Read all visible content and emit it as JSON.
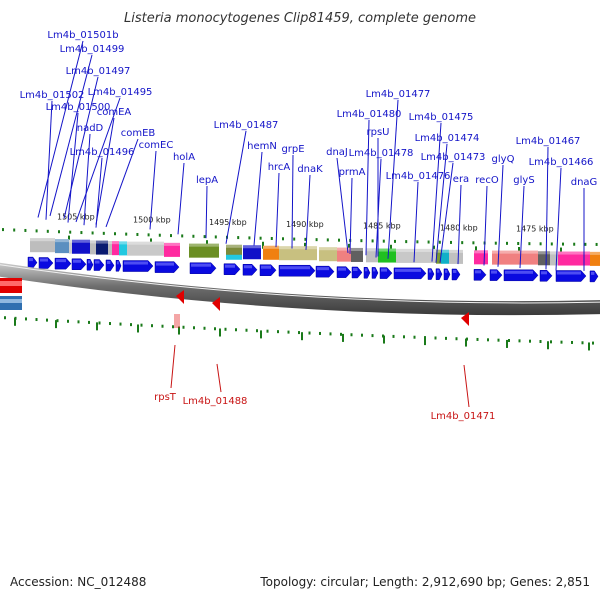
{
  "title": "Listeria monocytogenes Clip81459, complete genome",
  "accession": "Accession: NC_012488",
  "summary": "Topology: circular; Length: 2,912,690 bp; Genes: 2,851",
  "ruler_labels": [
    "1505 kbp",
    "1500 kbp",
    "1495 kbp",
    "1490 kbp",
    "1485 kbp",
    "1480 kbp",
    "1475 kbp"
  ],
  "forward_genes": [
    "Lm4b_01501b",
    "Lm4b_01499",
    "Lm4b_01497",
    "Lm4b_01502",
    "Lm4b_01495",
    "Lm4b_01500",
    "comEA",
    "nadD",
    "comEB",
    "Lm4b_01496",
    "comEC",
    "holA",
    "lepA",
    "Lm4b_01487",
    "hemN",
    "grpE",
    "hrcA",
    "dnaK",
    "dnaJ",
    "prmA",
    "Lm4b_01480",
    "rpsU",
    "Lm4b_01478",
    "Lm4b_01477",
    "Lm4b_01475",
    "Lm4b_01474",
    "Lm4b_01473",
    "Lm4b_01476",
    "era",
    "recO",
    "glyQ",
    "glyS",
    "Lm4b_01467",
    "Lm4b_01466",
    "dnaG"
  ],
  "reverse_genes": [
    "rpsT",
    "Lm4b_01488",
    "Lm4b_01471"
  ],
  "colors": {
    "forward_label": "#1414c8",
    "reverse_label": "#c81414",
    "forward_arrow": "#0a0ae0",
    "reverse_arrow": "#e00000",
    "tick": "#1a7a1a",
    "backbone": "#808080"
  }
}
